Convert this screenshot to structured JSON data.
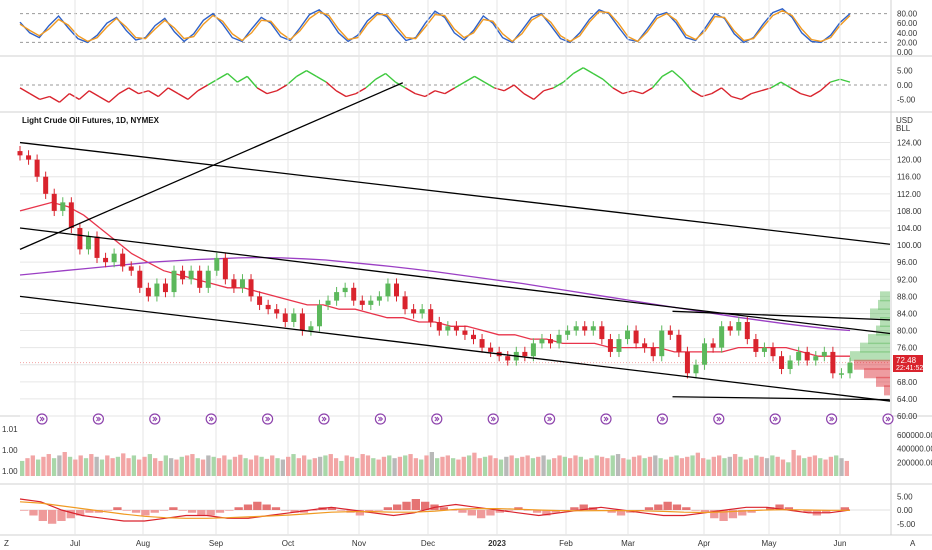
{
  "title": "Light Crude Oil Futures, 1D, NYMEX",
  "currency": "USD",
  "unit": "BLL",
  "price_badge": {
    "price": "72.48",
    "countdown": "22:41:52"
  },
  "corner_left": "Z",
  "corner_right": "A",
  "colors": {
    "up": "#5cb85c",
    "down": "#d9232d",
    "ma_red": "#e8344b",
    "ma_purple": "#9b3fc4",
    "blue": "#2f62c9",
    "orange": "#f09a22",
    "trend": "#000000",
    "vol_up": "#a9d7a9",
    "vol_down": "#f2a5a5",
    "vol_neutral": "#b9b9b9"
  },
  "chart_data": [
    {
      "type": "line",
      "name": "oscillator-top",
      "y_ticks": [
        "80.00",
        "60.00",
        "40.00",
        "20.00",
        "0.00"
      ],
      "ylim": [
        0,
        100
      ],
      "reference_lines": [
        80,
        20
      ],
      "series": [
        {
          "color": "#2f62c9",
          "values": [
            62,
            40,
            30,
            55,
            75,
            50,
            28,
            20,
            35,
            60,
            72,
            45,
            25,
            30,
            55,
            70,
            42,
            22,
            38,
            66,
            80,
            58,
            30,
            22,
            48,
            72,
            60,
            32,
            24,
            50,
            78,
            88,
            70,
            40,
            22,
            35,
            65,
            82,
            74,
            46,
            24,
            30,
            60,
            85,
            72,
            40,
            25,
            45,
            75,
            60,
            30,
            20,
            45,
            72,
            80,
            55,
            28,
            20,
            40,
            68,
            88,
            80,
            52,
            26,
            22,
            48,
            76,
            82,
            60,
            30,
            24,
            50,
            80,
            70,
            38,
            20,
            30,
            58,
            82,
            90,
            72,
            40,
            22,
            20,
            35,
            62,
            80
          ]
        },
        {
          "color": "#f09a22",
          "values": [
            58,
            45,
            34,
            48,
            68,
            56,
            34,
            22,
            30,
            52,
            70,
            52,
            30,
            28,
            48,
            66,
            50,
            28,
            32,
            58,
            76,
            64,
            38,
            24,
            40,
            66,
            64,
            40,
            26,
            44,
            70,
            84,
            76,
            48,
            26,
            30,
            58,
            78,
            78,
            54,
            30,
            28,
            52,
            78,
            76,
            48,
            30,
            40,
            68,
            64,
            38,
            22,
            38,
            66,
            78,
            62,
            34,
            22,
            34,
            62,
            84,
            82,
            60,
            32,
            22,
            42,
            70,
            80,
            66,
            36,
            26,
            44,
            74,
            72,
            44,
            24,
            28,
            52,
            76,
            86,
            76,
            48,
            26,
            22,
            30,
            56,
            76
          ]
        }
      ]
    },
    {
      "type": "line",
      "name": "oscillator-mid",
      "y_ticks": [
        "5.00",
        "0.00",
        "-5.00"
      ],
      "ylim": [
        -8,
        8
      ],
      "reference_lines": [
        0
      ],
      "series": [
        {
          "color": "#d9232d",
          "values": [
            -1,
            -3,
            -5,
            -4,
            -6,
            -3,
            -5,
            -2,
            -4,
            -6,
            -3,
            -1,
            -3,
            -2,
            -4,
            -1,
            -3,
            -5,
            -2,
            0,
            2,
            4,
            1,
            3,
            -1,
            -3,
            -2,
            0,
            3,
            5,
            3,
            1,
            -2,
            -4,
            -3,
            -1,
            2,
            4,
            1,
            -1,
            -3,
            -4,
            -2,
            -3,
            -1,
            1,
            3,
            1,
            -1,
            -2,
            0,
            -3,
            -5,
            -2,
            -1,
            1,
            4,
            6,
            4,
            2,
            -1,
            -3,
            -2,
            -3,
            -1,
            3,
            5,
            2,
            -2,
            -4,
            -3,
            -1,
            -4,
            -5,
            -3,
            -2,
            -1,
            1,
            -1,
            -3,
            -4,
            -2,
            1,
            2,
            1
          ]
        }
      ]
    },
    {
      "type": "candlestick",
      "name": "price",
      "title": "Light Crude Oil Futures, 1D, NYMEX",
      "x_tick_labels": [
        "Jul",
        "Aug",
        "Sep",
        "Oct",
        "Nov",
        "Dec",
        "2023",
        "Feb",
        "Mar",
        "Apr",
        "May",
        "Jun"
      ],
      "y_tick_labels": [
        "124.00",
        "120.00",
        "116.00",
        "112.00",
        "108.00",
        "104.00",
        "100.00",
        "96.00",
        "92.00",
        "88.00",
        "84.00",
        "80.00",
        "76.00",
        "72.00",
        "68.00",
        "64.00",
        "60.00"
      ],
      "ylim": [
        60,
        126
      ],
      "last_price": 72.48,
      "close": [
        121,
        120,
        116,
        112,
        108,
        110,
        104,
        99,
        102,
        97,
        96,
        98,
        95,
        94,
        90,
        88,
        91,
        89,
        94,
        92,
        94,
        90,
        94,
        97,
        92,
        90,
        92,
        88,
        86,
        85,
        84,
        82,
        84,
        80,
        81,
        86,
        87,
        89,
        90,
        87,
        86,
        87,
        88,
        91,
        88,
        85,
        84,
        85,
        82,
        80,
        81,
        80,
        79,
        78,
        76,
        75,
        74,
        73,
        75,
        74,
        77,
        78,
        77,
        79,
        80,
        81,
        80,
        81,
        78,
        75,
        78,
        80,
        77,
        76,
        74,
        80,
        79,
        75,
        70,
        72,
        77,
        76,
        81,
        80,
        82,
        78,
        75,
        76,
        74,
        71,
        73,
        75,
        73,
        74,
        75,
        70,
        70,
        72.48
      ],
      "moving_averages": [
        {
          "name": "MA-red",
          "color": "#e8344b",
          "values": [
            108,
            109,
            110,
            109,
            107,
            104,
            101,
            98,
            96,
            94,
            93,
            92,
            91,
            90,
            90,
            89,
            88,
            87,
            86,
            86,
            85,
            85,
            84,
            83,
            83,
            82,
            82,
            81,
            81,
            80,
            79,
            79,
            78,
            78,
            77,
            77,
            77,
            76,
            76,
            76,
            76,
            75,
            75,
            75,
            75,
            76,
            76,
            76,
            76,
            75,
            74,
            74,
            74
          ]
        },
        {
          "name": "MA-purple",
          "color": "#9b3fc4",
          "values": [
            93,
            93.5,
            94,
            94.5,
            95,
            95.5,
            96,
            96.3,
            96.6,
            96.8,
            97,
            97.1,
            97,
            96.8,
            96.5,
            96,
            95.5,
            95,
            94.4,
            93.8,
            93.1,
            92.4,
            91.7,
            91,
            90.2,
            89.4,
            88.6,
            87.8,
            87,
            86.2,
            85.4,
            84.6,
            83.8,
            83,
            82.3,
            81.6,
            81,
            80.4,
            80
          ]
        }
      ],
      "trend_lines": [
        {
          "from": [
            0,
            124
          ],
          "to": [
            1,
            100.2
          ]
        },
        {
          "from": [
            0,
            104
          ],
          "to": [
            1,
            79.3
          ]
        },
        {
          "from": [
            0,
            88
          ],
          "to": [
            1,
            63.5
          ]
        },
        {
          "from": [
            0,
            99
          ],
          "to": [
            0.44,
            138
          ]
        },
        {
          "from": [
            0.75,
            84.5
          ],
          "to": [
            1,
            82.5
          ]
        },
        {
          "from": [
            0.75,
            64.5
          ],
          "to": [
            1,
            63.8
          ]
        }
      ],
      "event_markers": 16
    },
    {
      "type": "bar",
      "name": "volume",
      "y_ticks": [
        "600000.00",
        "400000.00",
        "200000.00"
      ],
      "left_ticks": [
        "1.01",
        "1.00",
        "1.00"
      ],
      "ylim": [
        0,
        700000
      ],
      "values": [
        220,
        260,
        300,
        240,
        280,
        320,
        260,
        300,
        350,
        280,
        240,
        300,
        260,
        320,
        280,
        240,
        300,
        260,
        280,
        330,
        260,
        300,
        240,
        280,
        320,
        260,
        220,
        300,
        260,
        240,
        280,
        300,
        320,
        260,
        240,
        300,
        280,
        260,
        300,
        240,
        280,
        310,
        260,
        240,
        300,
        280,
        250,
        300,
        260,
        240,
        280,
        320,
        260,
        300,
        240,
        260,
        280,
        300,
        320,
        260,
        220,
        300,
        280,
        260,
        320,
        300,
        260,
        240,
        280,
        300,
        260,
        280,
        300,
        320,
        260,
        240,
        300,
        350,
        260,
        280,
        300,
        260,
        240,
        280,
        300,
        340,
        260,
        280,
        300,
        260,
        240,
        280,
        300,
        260,
        280,
        300,
        260,
        280,
        300,
        240,
        260,
        300,
        280,
        260,
        300,
        280,
        240,
        260,
        300,
        280,
        260,
        300,
        320,
        260,
        240,
        280,
        300,
        260,
        280,
        300,
        260,
        240,
        280,
        300,
        260,
        280,
        300,
        340,
        260,
        240,
        280,
        300,
        260,
        280,
        320,
        280,
        240,
        260,
        300,
        280,
        260,
        300,
        280,
        240,
        200,
        380,
        300,
        260,
        280,
        300,
        260,
        240,
        280,
        300,
        260,
        220
      ]
    },
    {
      "type": "bar",
      "name": "histogram",
      "y_ticks": [
        "5.00",
        "0.00",
        "-5.00"
      ],
      "ylim": [
        -8,
        8
      ],
      "values": [
        0,
        -2,
        -4,
        -5,
        -4,
        -3,
        -2,
        -1,
        -1,
        0,
        1,
        0,
        -1,
        -2,
        -1,
        0,
        1,
        0,
        -1,
        -2,
        -2,
        -1,
        0,
        1,
        2,
        3,
        2,
        1,
        0,
        -1,
        -1,
        0,
        1,
        1,
        0,
        -1,
        -2,
        -1,
        0,
        1,
        2,
        3,
        4,
        3,
        2,
        1,
        0,
        -1,
        -2,
        -3,
        -2,
        -1,
        0,
        1,
        0,
        -1,
        -2,
        -1,
        0,
        1,
        2,
        1,
        0,
        -1,
        -2,
        -1,
        0,
        1,
        2,
        3,
        2,
        1,
        0,
        -1,
        -3,
        -4,
        -3,
        -2,
        -1,
        0,
        1,
        2,
        1,
        0,
        -1,
        -2,
        -1,
        0,
        1
      ],
      "lines": [
        {
          "color": "#d9232d",
          "values": [
            4,
            3,
            0,
            -2,
            -3,
            -4,
            -4,
            -3,
            -2,
            -2,
            -3,
            -3,
            -2,
            -1,
            0,
            1,
            0,
            -1,
            -2,
            -1,
            1,
            2,
            1,
            0,
            -1,
            -2,
            -1,
            0,
            1,
            0,
            -1,
            -2,
            -2,
            -1,
            0,
            1,
            1,
            0,
            -1,
            -1,
            0
          ]
        },
        {
          "color": "#f09a22",
          "values": [
            3,
            2.5,
            1.5,
            0.5,
            -0.5,
            -1.5,
            -2.3,
            -2.8,
            -3,
            -3,
            -2.8,
            -2.5,
            -2.2,
            -1.8,
            -1.3,
            -0.8,
            -0.6,
            -0.6,
            -0.8,
            -0.8,
            -0.4,
            0.2,
            0.5,
            0.5,
            0.3,
            0,
            -0.2,
            -0.3,
            -0.2,
            -0.2,
            -0.3,
            -0.5,
            -0.8,
            -0.9,
            -0.7,
            -0.3,
            0,
            0.1,
            0,
            -0.1,
            -0.1
          ]
        }
      ]
    }
  ]
}
